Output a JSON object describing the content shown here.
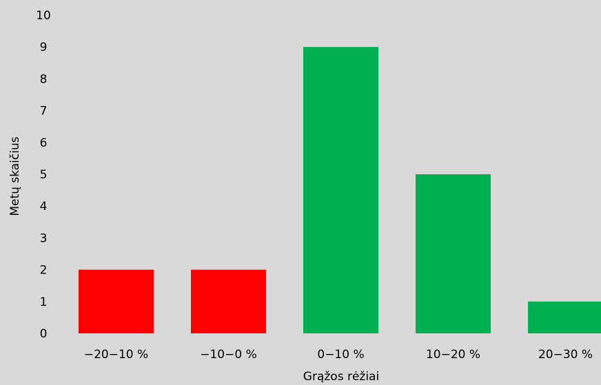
{
  "chart_data": {
    "type": "bar",
    "categories": [
      "−20−10 %",
      "−10−0 %",
      "0−10 %",
      "10−20 %",
      "20−30 %"
    ],
    "values": [
      2,
      2,
      9,
      5,
      1
    ],
    "bar_colors": [
      "#ff0000",
      "#ff0000",
      "#00b050",
      "#00b050",
      "#00b050"
    ],
    "title": "",
    "xlabel": "Grąžos rėžiai",
    "ylabel": "Metų skaičius",
    "ylim": [
      0,
      10
    ],
    "yticks": [
      0,
      1,
      2,
      3,
      4,
      5,
      6,
      7,
      8,
      9,
      10
    ],
    "grid": false,
    "legend": "none",
    "background": "#d9d9d9"
  }
}
